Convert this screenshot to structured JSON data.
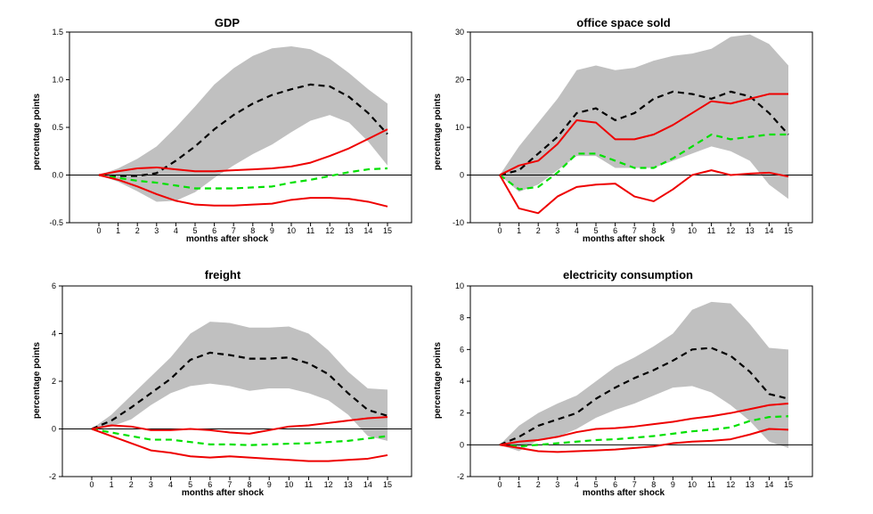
{
  "chart_data": [
    {
      "type": "line",
      "title": "GDP",
      "xlabel": "months after shock",
      "ylabel": "percentage points",
      "x": [
        0,
        1,
        2,
        3,
        4,
        5,
        6,
        7,
        8,
        9,
        10,
        11,
        12,
        13,
        14,
        15
      ],
      "ylim": [
        -0.5,
        1.5
      ],
      "yticks": [
        "-0.5",
        "0.0",
        "0.5",
        "1.0",
        "1.5"
      ],
      "series": [
        {
          "style": "band",
          "lower": [
            0,
            -0.07,
            -0.17,
            -0.28,
            -0.27,
            -0.18,
            -0.03,
            0.1,
            0.22,
            0.32,
            0.45,
            0.57,
            0.63,
            0.55,
            0.35,
            0.1
          ],
          "upper": [
            0,
            0.07,
            0.17,
            0.3,
            0.5,
            0.72,
            0.95,
            1.12,
            1.25,
            1.33,
            1.35,
            1.32,
            1.22,
            1.07,
            0.9,
            0.75
          ]
        },
        {
          "style": "black-dashed",
          "values": [
            0,
            -0.01,
            -0.01,
            0.02,
            0.15,
            0.3,
            0.48,
            0.63,
            0.75,
            0.84,
            0.9,
            0.95,
            0.93,
            0.82,
            0.65,
            0.43
          ]
        },
        {
          "style": "green-dashed",
          "values": [
            0,
            -0.03,
            -0.06,
            -0.08,
            -0.11,
            -0.14,
            -0.14,
            -0.14,
            -0.13,
            -0.12,
            -0.08,
            -0.05,
            -0.01,
            0.03,
            0.06,
            0.07
          ]
        },
        {
          "style": "red",
          "values": [
            0,
            0.04,
            0.07,
            0.08,
            0.06,
            0.04,
            0.04,
            0.05,
            0.06,
            0.07,
            0.09,
            0.13,
            0.2,
            0.28,
            0.38,
            0.48
          ]
        },
        {
          "style": "red",
          "values": [
            0,
            -0.05,
            -0.12,
            -0.2,
            -0.27,
            -0.31,
            -0.32,
            -0.32,
            -0.31,
            -0.3,
            -0.26,
            -0.24,
            -0.24,
            -0.25,
            -0.28,
            -0.33
          ]
        }
      ]
    },
    {
      "type": "line",
      "title": "office space sold",
      "xlabel": "months after shock",
      "ylabel": "percentage points",
      "x": [
        0,
        1,
        2,
        3,
        4,
        5,
        6,
        7,
        8,
        9,
        10,
        11,
        12,
        13,
        14,
        15
      ],
      "ylim": [
        -10,
        30
      ],
      "yticks": [
        "-10",
        "0",
        "10",
        "20",
        "30"
      ],
      "series": [
        {
          "style": "band",
          "lower": [
            0,
            -3.5,
            -2,
            1,
            4,
            4,
            1.5,
            1.5,
            1.5,
            3,
            4.5,
            6,
            5,
            3,
            -2,
            -5
          ],
          "upper": [
            0,
            6,
            11,
            16,
            22,
            23,
            22,
            22.5,
            24,
            25,
            25.5,
            26.5,
            29,
            29.5,
            27.5,
            23
          ]
        },
        {
          "style": "black-dashed",
          "values": [
            0,
            1,
            4.5,
            8,
            13,
            14,
            11.5,
            13,
            16,
            17.5,
            17,
            16,
            17.5,
            16.5,
            13,
            8.5
          ]
        },
        {
          "style": "green-dashed",
          "values": [
            0,
            -3,
            -2.5,
            0.5,
            4.5,
            4.5,
            3,
            1.5,
            1.5,
            3.5,
            6,
            8.5,
            7.5,
            8,
            8.5,
            8.5
          ]
        },
        {
          "style": "red",
          "values": [
            0,
            2,
            3,
            6.5,
            11.5,
            11,
            7.5,
            7.5,
            8.5,
            10.5,
            13,
            15.5,
            15,
            16,
            17,
            17
          ]
        },
        {
          "style": "red",
          "values": [
            0,
            -7,
            -8,
            -4.5,
            -2.5,
            -2,
            -1.8,
            -4.5,
            -5.5,
            -3,
            0,
            1,
            0,
            0.3,
            0.5,
            -0.3
          ]
        }
      ]
    },
    {
      "type": "line",
      "title": "freight",
      "xlabel": "months after shock",
      "ylabel": "percentage points",
      "x": [
        0,
        1,
        2,
        3,
        4,
        5,
        6,
        7,
        8,
        9,
        10,
        11,
        12,
        13,
        14,
        15
      ],
      "ylim": [
        -2,
        6
      ],
      "yticks": [
        "-2",
        "0",
        "2",
        "4",
        "6"
      ],
      "series": [
        {
          "style": "band",
          "lower": [
            0,
            0.1,
            0.4,
            1,
            1.5,
            1.8,
            1.9,
            1.8,
            1.6,
            1.7,
            1.7,
            1.5,
            1.2,
            0.6,
            -0.3,
            -0.5
          ],
          "upper": [
            0,
            0.6,
            1.4,
            2.2,
            3,
            4,
            4.5,
            4.45,
            4.25,
            4.25,
            4.3,
            4,
            3.3,
            2.4,
            1.7,
            1.65
          ]
        },
        {
          "style": "black-dashed",
          "values": [
            0,
            0.35,
            0.9,
            1.5,
            2.1,
            2.9,
            3.2,
            3.1,
            2.95,
            2.95,
            3,
            2.75,
            2.3,
            1.5,
            0.8,
            0.55
          ]
        },
        {
          "style": "green-dashed",
          "values": [
            0,
            -0.15,
            -0.3,
            -0.45,
            -0.45,
            -0.55,
            -0.65,
            -0.65,
            -0.68,
            -0.65,
            -0.62,
            -0.6,
            -0.55,
            -0.5,
            -0.4,
            -0.3
          ]
        },
        {
          "style": "red",
          "values": [
            0,
            0.15,
            0.1,
            -0.05,
            -0.05,
            0,
            -0.05,
            -0.15,
            -0.2,
            -0.05,
            0.1,
            0.15,
            0.25,
            0.35,
            0.45,
            0.5
          ]
        },
        {
          "style": "red",
          "values": [
            0,
            -0.3,
            -0.6,
            -0.9,
            -1,
            -1.15,
            -1.2,
            -1.15,
            -1.2,
            -1.25,
            -1.3,
            -1.35,
            -1.35,
            -1.3,
            -1.25,
            -1.1
          ]
        }
      ]
    },
    {
      "type": "line",
      "title": "electricity consumption",
      "xlabel": "months after shock",
      "ylabel": "percentage points",
      "x": [
        0,
        1,
        2,
        3,
        4,
        5,
        6,
        7,
        8,
        9,
        10,
        11,
        12,
        13,
        14,
        15
      ],
      "ylim": [
        -2,
        10
      ],
      "yticks": [
        "-2",
        "0",
        "2",
        "4",
        "6",
        "8",
        "10"
      ],
      "series": [
        {
          "style": "band",
          "lower": [
            0,
            -0.4,
            0.3,
            0.5,
            1,
            1.7,
            2.2,
            2.6,
            3.1,
            3.6,
            3.7,
            3.3,
            2.5,
            1.5,
            0.2,
            -0.2
          ],
          "upper": [
            0,
            1.2,
            2,
            2.6,
            3.1,
            4,
            4.9,
            5.5,
            6.2,
            7,
            8.5,
            9,
            8.9,
            7.6,
            6.1,
            6
          ]
        },
        {
          "style": "black-dashed",
          "values": [
            0,
            0.5,
            1.2,
            1.6,
            2,
            2.9,
            3.6,
            4.2,
            4.7,
            5.3,
            6,
            6.1,
            5.6,
            4.6,
            3.2,
            2.9
          ]
        },
        {
          "style": "green-dashed",
          "values": [
            0,
            -0.1,
            0,
            0.1,
            0.2,
            0.3,
            0.35,
            0.45,
            0.55,
            0.7,
            0.85,
            0.95,
            1.1,
            1.5,
            1.75,
            1.8
          ]
        },
        {
          "style": "red",
          "values": [
            0,
            0.2,
            0.3,
            0.5,
            0.8,
            1,
            1.05,
            1.15,
            1.3,
            1.45,
            1.65,
            1.8,
            2,
            2.25,
            2.5,
            2.6
          ]
        },
        {
          "style": "red",
          "values": [
            0,
            -0.2,
            -0.4,
            -0.45,
            -0.4,
            -0.35,
            -0.3,
            -0.2,
            -0.1,
            0.1,
            0.2,
            0.25,
            0.35,
            0.65,
            1,
            0.95
          ]
        }
      ]
    }
  ],
  "colors": {
    "band": "#c0c0c0",
    "black_dashed": "#000000",
    "green_dashed": "#00e000",
    "red": "#ee0000",
    "zero_line": "#000000"
  }
}
